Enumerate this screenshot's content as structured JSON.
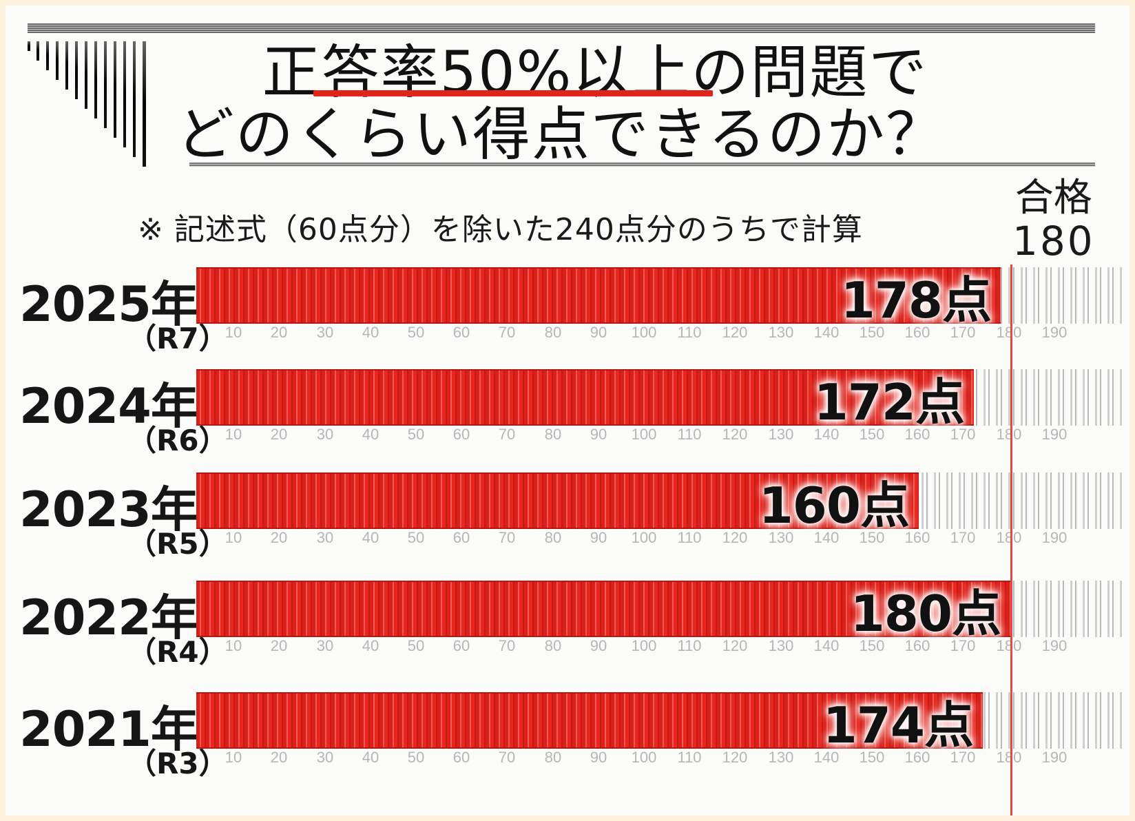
{
  "title": {
    "line1": "正答率50%以上の問題で",
    "line2": "どのくらい得点できるのか？",
    "underline_color": "#e0231b"
  },
  "note": "※ 記述式（60点分）を除いた240点分のうちで計算",
  "pass_marker": {
    "label": "合格",
    "value": "180",
    "color": "#dd4a48"
  },
  "rows": [
    {
      "year": "2025年",
      "era": "（R7）",
      "score": 178,
      "score_label": "178点"
    },
    {
      "year": "2024年",
      "era": "（R6）",
      "score": 172,
      "score_label": "172点"
    },
    {
      "year": "2023年",
      "era": "（R5）",
      "score": 160,
      "score_label": "160点"
    },
    {
      "year": "2022年",
      "era": "（R4）",
      "score": 180,
      "score_label": "180点"
    },
    {
      "year": "2021年",
      "era": "（R3）",
      "score": 174,
      "score_label": "174点"
    }
  ],
  "ticks": [
    "10",
    "20",
    "30",
    "40",
    "50",
    "60",
    "70",
    "80",
    "90",
    "100",
    "110",
    "120",
    "130",
    "140",
    "150",
    "160",
    "170",
    "180",
    "190"
  ],
  "colors": {
    "bar": "#e0231b",
    "remainder": "#cfcfcf",
    "tick_text": "#b6b6b6"
  },
  "chart_data": {
    "type": "bar",
    "orientation": "horizontal",
    "title": "正答率50%以上の問題でどのくらい得点できるのか？",
    "subtitle": "※ 記述式（60点分）を除いた240点分のうちで計算",
    "categories": [
      "2025年（R7）",
      "2024年（R6）",
      "2023年（R5）",
      "2022年（R4）",
      "2021年（R3）"
    ],
    "values": [
      178,
      172,
      160,
      180,
      174
    ],
    "data_labels": [
      "178点",
      "172点",
      "160点",
      "180点",
      "174点"
    ],
    "xlabel": "",
    "ylabel": "",
    "xlim": [
      0,
      195
    ],
    "x_ticks": [
      10,
      20,
      30,
      40,
      50,
      60,
      70,
      80,
      90,
      100,
      110,
      120,
      130,
      140,
      150,
      160,
      170,
      180,
      190
    ],
    "reference_line": {
      "value": 180,
      "label": "合格 180"
    },
    "grid": false,
    "legend": null
  }
}
